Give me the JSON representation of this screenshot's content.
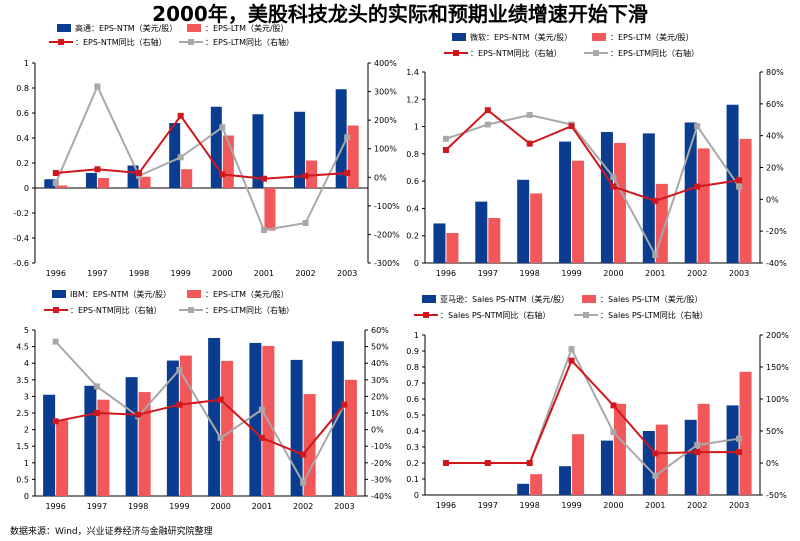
{
  "title": "2000年，美股科技龙头的实际和预期业绩增速开始下滑",
  "source": "数据来源：Wind，兴业证券经济与金融研究院整理",
  "colors": {
    "bar_ntm": "#0a3d8f",
    "bar_ltm": "#f2575a",
    "line_ntm": "#d0171d",
    "line_ltm": "#a8a8a8",
    "axis": "#000000"
  },
  "chart_data": [
    {
      "type": "bar+line",
      "company": "Qualcomm",
      "legend": [
        "高通：EPS-NTM（美元/股）",
        "：EPS-LTM（美元/股）",
        "：EPS-NTM同比（右轴）",
        "：EPS-LTM同比（右轴）"
      ],
      "categories": [
        "1996",
        "1997",
        "1998",
        "1999",
        "2000",
        "2001",
        "2002",
        "2003"
      ],
      "left_axis": {
        "min": -0.6,
        "max": 1.0,
        "step": 0.2,
        "ticks": [
          "-0.6",
          "-0.4",
          "-0.2",
          "0",
          "0.2",
          "0.4",
          "0.6",
          "0.8",
          "1"
        ]
      },
      "right_axis": {
        "min": -300,
        "max": 400,
        "step": 100,
        "ticks": [
          "-300%",
          "-200%",
          "-100%",
          "0%",
          "100%",
          "200%",
          "300%",
          "400%"
        ]
      },
      "bars_ntm": [
        0.07,
        0.12,
        0.18,
        0.52,
        0.65,
        0.59,
        0.61,
        0.79
      ],
      "bars_ltm": [
        0.02,
        0.08,
        0.09,
        0.15,
        0.42,
        -0.34,
        0.22,
        0.5
      ],
      "line_ntm": [
        15,
        28,
        15,
        215,
        10,
        -5,
        5,
        15
      ],
      "line_ltm": [
        -20,
        318,
        5,
        70,
        175,
        -185,
        -160,
        140
      ]
    },
    {
      "type": "bar+line",
      "company": "Microsoft",
      "legend": [
        "微软：EPS-NTM（美元/股）",
        "：EPS-LTM（美元/股）",
        "：EPS-NTM同比（右轴）",
        "：EPS-LTM同比（右轴）"
      ],
      "categories": [
        "1996",
        "1997",
        "1998",
        "1999",
        "2000",
        "2001",
        "2002",
        "2003"
      ],
      "left_axis": {
        "min": 0,
        "max": 1.4,
        "step": 0.2,
        "ticks": [
          "0",
          "0.2",
          "0.4",
          "0.6",
          "0.8",
          "1",
          "1.2",
          "1.4"
        ]
      },
      "right_axis": {
        "min": -40,
        "max": 80,
        "step": 20,
        "ticks": [
          "-40%",
          "-20%",
          "0%",
          "20%",
          "40%",
          "60%",
          "80%"
        ]
      },
      "bars_ntm": [
        0.29,
        0.45,
        0.61,
        0.89,
        0.96,
        0.95,
        1.03,
        1.16
      ],
      "bars_ltm": [
        0.22,
        0.33,
        0.51,
        0.75,
        0.88,
        0.58,
        0.84,
        0.91
      ],
      "line_ntm": [
        31,
        56,
        35,
        46,
        8,
        -1,
        8,
        12
      ],
      "line_ltm": [
        38,
        47,
        53,
        47,
        14,
        -35,
        46,
        8
      ]
    },
    {
      "type": "bar+line",
      "company": "IBM",
      "legend": [
        "IBM：EPS-NTM（美元/股）",
        "：EPS-LTM（美元/股）",
        "：EPS-NTM同比（右轴）",
        "：EPS-LTM同比（右轴）"
      ],
      "categories": [
        "1996",
        "1997",
        "1998",
        "1999",
        "2000",
        "2001",
        "2002",
        "2003"
      ],
      "left_axis": {
        "min": 0,
        "max": 5,
        "step": 0.5,
        "ticks": [
          "0",
          "0.5",
          "1",
          "1.5",
          "2",
          "2.5",
          "3",
          "3.5",
          "4",
          "4.5",
          "5"
        ]
      },
      "right_axis": {
        "min": -40,
        "max": 60,
        "step": 10,
        "ticks": [
          "-40%",
          "-30%",
          "-20%",
          "-10%",
          "0%",
          "10%",
          "20%",
          "30%",
          "40%",
          "50%",
          "60%"
        ]
      },
      "bars_ntm": [
        3.05,
        3.32,
        3.58,
        4.08,
        4.76,
        4.61,
        4.1,
        4.66
      ],
      "bars_ltm": [
        2.28,
        2.9,
        3.13,
        4.23,
        4.07,
        4.52,
        3.07,
        3.5
      ],
      "line_ntm": [
        5,
        10,
        9,
        15,
        18,
        -5,
        -15,
        15
      ],
      "line_ltm": [
        53,
        26,
        8,
        36,
        -5,
        12,
        -32,
        15
      ]
    },
    {
      "type": "bar+line",
      "company": "Amazon",
      "legend": [
        "亚马逊：Sales PS-NTM（美元/股）",
        "：Sales PS-LTM（美元/股）",
        "：Sales PS-NTM同比（右轴）",
        "：Sales PS-LTM同比（右轴）"
      ],
      "categories": [
        "1996",
        "1997",
        "1998",
        "1999",
        "2000",
        "2001",
        "2002",
        "2003"
      ],
      "left_axis": {
        "min": 0,
        "max": 1.0,
        "step": 0.1,
        "ticks": [
          "0",
          "0.1",
          "0.2",
          "0.3",
          "0.4",
          "0.5",
          "0.6",
          "0.7",
          "0.8",
          "0.9",
          "1"
        ]
      },
      "right_axis": {
        "min": -50,
        "max": 200,
        "step": 50,
        "ticks": [
          "-50%",
          "0%",
          "50%",
          "100%",
          "150%",
          "200%"
        ]
      },
      "bars_ntm": [
        0,
        0,
        0.07,
        0.18,
        0.34,
        0.4,
        0.47,
        0.56
      ],
      "bars_ltm": [
        0,
        0,
        0.13,
        0.38,
        0.57,
        0.44,
        0.57,
        0.77
      ],
      "line_ntm": [
        0,
        0,
        0,
        160,
        90,
        15,
        17,
        17
      ],
      "line_ltm": [
        0,
        0,
        0,
        178,
        48,
        -20,
        28,
        38
      ]
    }
  ]
}
